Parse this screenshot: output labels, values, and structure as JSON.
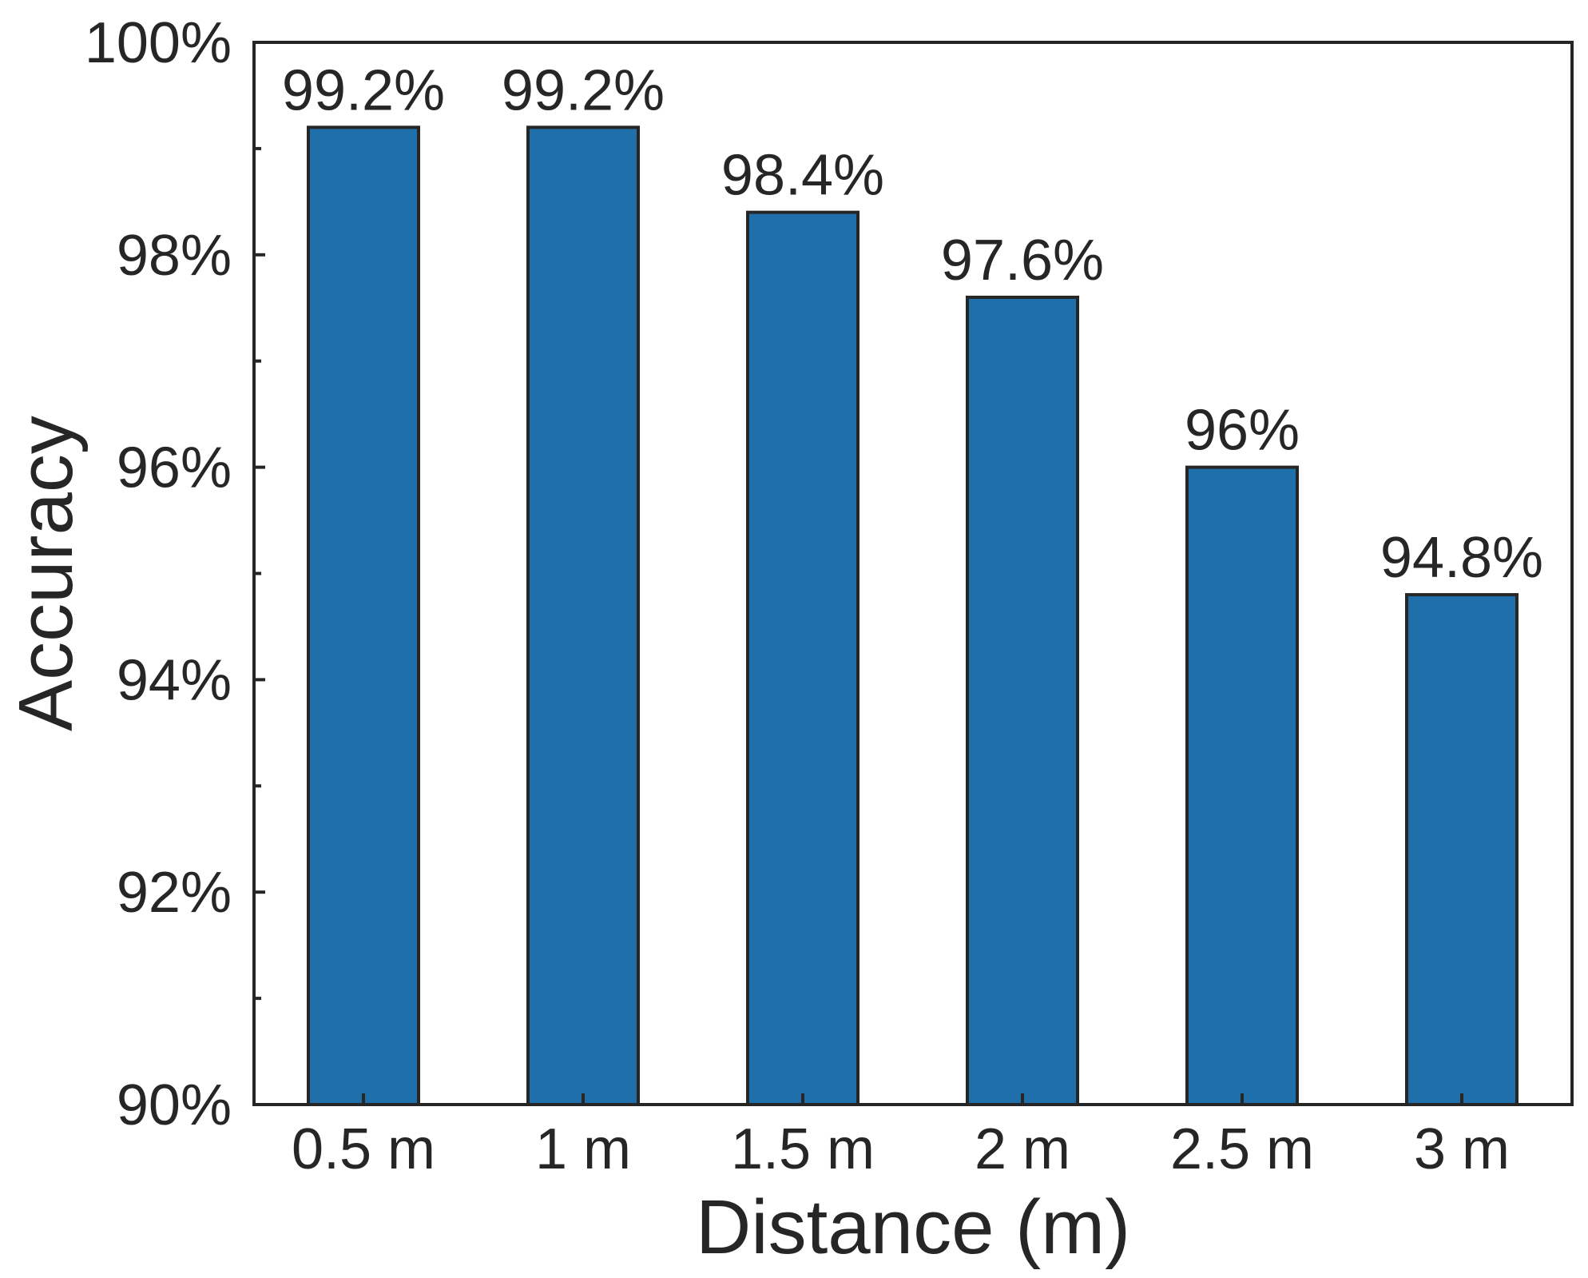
{
  "chart_data": {
    "type": "bar",
    "categories": [
      "0.5 m",
      "1 m",
      "1.5 m",
      "2 m",
      "2.5 m",
      "3 m"
    ],
    "values": [
      99.2,
      99.2,
      98.4,
      97.6,
      96.0,
      94.8
    ],
    "value_labels": [
      "99.2%",
      "99.2%",
      "98.4%",
      "97.6%",
      "96%",
      "94.8%"
    ],
    "xlabel": "Distance (m)",
    "ylabel": "Accuracy",
    "ylim": [
      90,
      100
    ],
    "yticks": [
      90,
      92,
      94,
      96,
      98,
      100
    ],
    "ytick_labels": [
      "90%",
      "92%",
      "94%",
      "96%",
      "98%",
      "100%"
    ],
    "y_minor_ticks": [
      91,
      93,
      95,
      97,
      99
    ],
    "bar_color": "#1f6fab",
    "bar_edge_color": "#262626",
    "grid": false,
    "legend": "none"
  }
}
